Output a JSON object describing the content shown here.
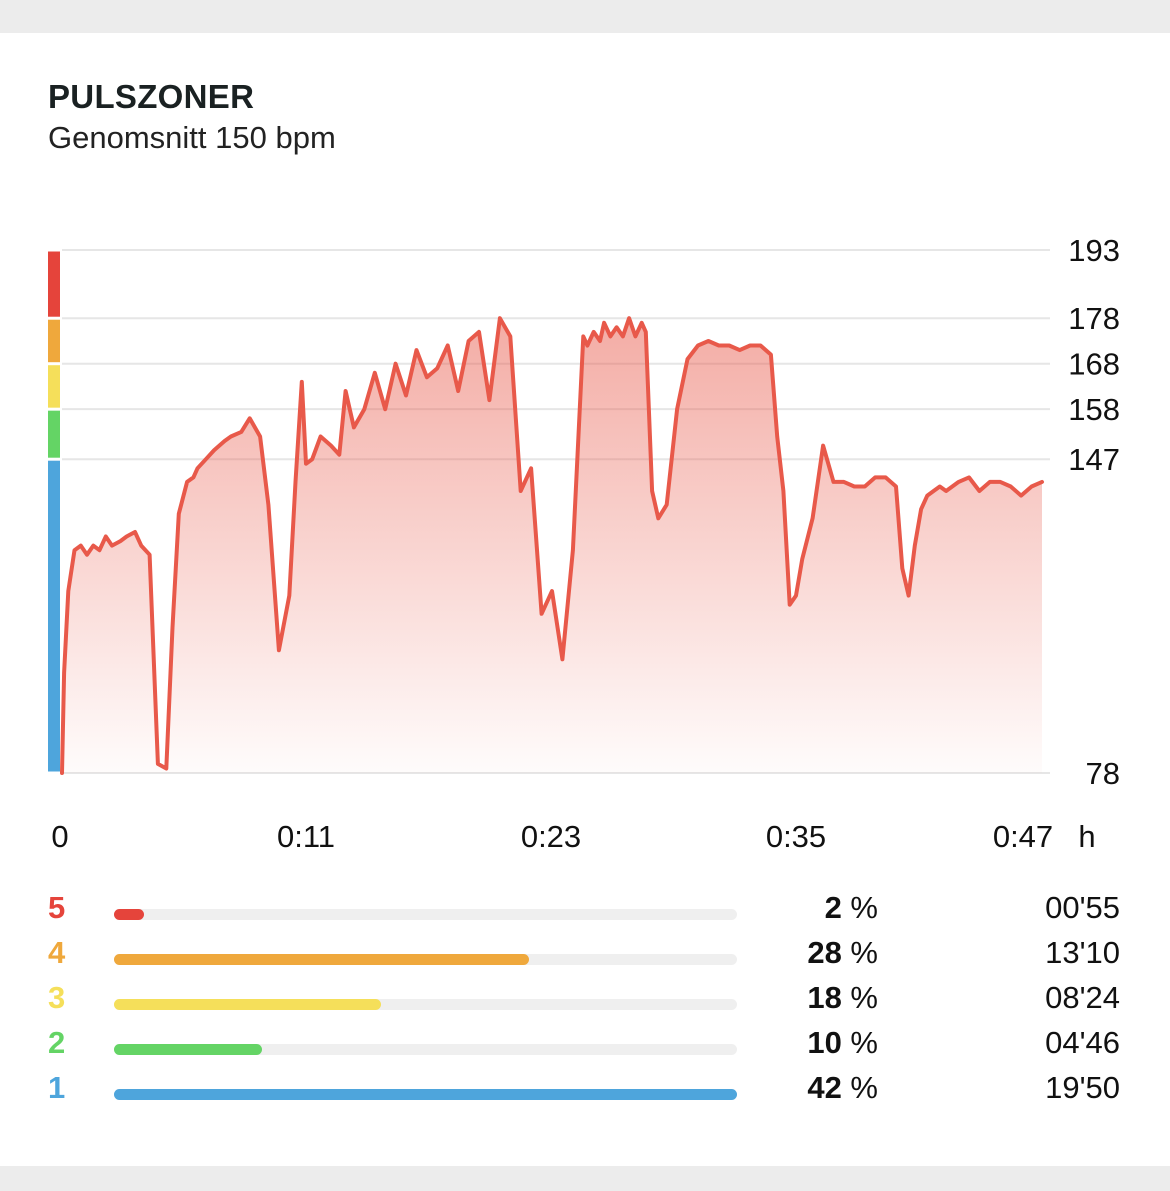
{
  "header": {
    "title": "PULSZONER",
    "subtitle": "Genomsnitt 150 bpm"
  },
  "colors": {
    "line": "#e8594a",
    "zone5": "#e5443b",
    "zone4": "#efa83c",
    "zone3": "#f5df5a",
    "zone2": "#64d465",
    "zone1": "#4ea5dc",
    "grid": "#e6e6e6"
  },
  "chart_data": {
    "type": "area",
    "title": "PULSZONER",
    "subtitle": "Genomsnitt 150 bpm",
    "x_unit": "h",
    "x_range_min": [
      0,
      47
    ],
    "y_range": [
      78,
      193
    ],
    "y_ticks": [
      193,
      178,
      168,
      158,
      147,
      78
    ],
    "x_ticks": [
      "0",
      "0:11",
      "0:23",
      "0:35",
      "0:47"
    ],
    "zone_boundaries": [
      78,
      147,
      158,
      168,
      178,
      193
    ],
    "grid": true,
    "series": [
      {
        "x_min": [
          0,
          0.1,
          0.3,
          0.6,
          0.9,
          1.2,
          1.5,
          1.8,
          2.1,
          2.4,
          2.8,
          3.1,
          3.5,
          3.8,
          4.2,
          4.6,
          5.0,
          5.3,
          5.6,
          6.0,
          6.3,
          6.5,
          6.9,
          7.3,
          7.8,
          8.1,
          8.6,
          9.0,
          9.5,
          9.9,
          10.4,
          10.9,
          11.2,
          11.5,
          11.7,
          12.0,
          12.4,
          12.9,
          13.3,
          13.6,
          14.0,
          14.5,
          15.0,
          15.5,
          16.0,
          16.5,
          17.0,
          17.5,
          18.0,
          18.5,
          19.0,
          19.5,
          20.0,
          20.5,
          21.0,
          21.5,
          22.0,
          22.5,
          23.0,
          23.5,
          24.0,
          24.5,
          25.0,
          25.2,
          25.5,
          25.8,
          26.0,
          26.3,
          26.6,
          26.9,
          27.2,
          27.5,
          27.8,
          28.0,
          28.3,
          28.6,
          29.0,
          29.5,
          30.0,
          30.5,
          31.0,
          31.5,
          32.0,
          32.5,
          33.0,
          33.5,
          34.0,
          34.3,
          34.6,
          34.9,
          35.2,
          35.5,
          36.0,
          36.5,
          37.0,
          37.5,
          38.0,
          38.5,
          39.0,
          39.5,
          40.0,
          40.3,
          40.6,
          40.9,
          41.2,
          41.5,
          41.8,
          42.1,
          42.4,
          42.7,
          43.0,
          43.5,
          44.0,
          44.5,
          45.0,
          45.5,
          46.0,
          46.5,
          47.0
        ],
        "y_bpm": [
          78,
          100,
          118,
          127,
          128,
          126,
          128,
          127,
          130,
          128,
          129,
          130,
          131,
          128,
          126,
          80,
          79,
          110,
          135,
          142,
          143,
          145,
          147,
          149,
          151,
          152,
          153,
          156,
          152,
          137,
          105,
          117,
          142,
          164,
          146,
          147,
          152,
          150,
          148,
          162,
          154,
          158,
          166,
          158,
          168,
          161,
          171,
          165,
          167,
          172,
          162,
          173,
          175,
          160,
          178,
          174,
          140,
          145,
          113,
          118,
          103,
          127,
          174,
          172,
          175,
          173,
          177,
          174,
          176,
          174,
          178,
          174,
          177,
          175,
          140,
          134,
          137,
          158,
          169,
          172,
          173,
          172,
          172,
          171,
          172,
          172,
          170,
          152,
          140,
          115,
          117,
          125,
          134,
          150,
          142,
          142,
          141,
          141,
          143,
          143,
          141,
          123,
          117,
          128,
          136,
          139,
          140,
          141,
          140,
          141,
          142,
          143,
          140,
          142,
          142,
          141,
          139,
          141,
          142,
          141,
          140
        ]
      }
    ],
    "zones_table": [
      {
        "zone": "5",
        "percent": "2",
        "percent_value": 2,
        "time": "00'55"
      },
      {
        "zone": "4",
        "percent": "28",
        "percent_value": 28,
        "time": "13'10"
      },
      {
        "zone": "3",
        "percent": "18",
        "percent_value": 18,
        "time": "08'24"
      },
      {
        "zone": "2",
        "percent": "10",
        "percent_value": 10,
        "time": "04'46"
      },
      {
        "zone": "1",
        "percent": "42",
        "percent_value": 42,
        "time": "19'50"
      }
    ],
    "zones_table_bar_scale": [
      0,
      42
    ],
    "percent_symbol": "%"
  }
}
